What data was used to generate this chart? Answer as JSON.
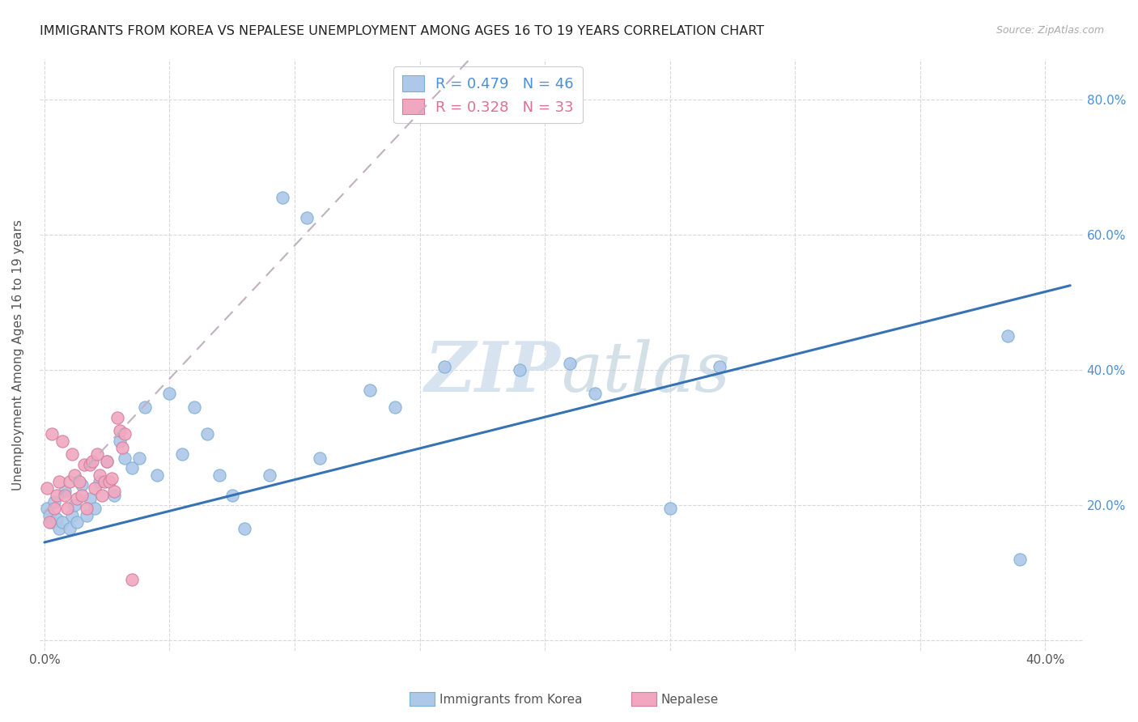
{
  "title": "IMMIGRANTS FROM KOREA VS NEPALESE UNEMPLOYMENT AMONG AGES 16 TO 19 YEARS CORRELATION CHART",
  "source": "Source: ZipAtlas.com",
  "ylabel": "Unemployment Among Ages 16 to 19 years",
  "xlabel_korea": "Immigrants from Korea",
  "xlabel_nepalese": "Nepalese",
  "xmin": -0.002,
  "xmax": 0.415,
  "ymin": -0.015,
  "ymax": 0.86,
  "korea_color": "#adc8e8",
  "korea_edge_color": "#7aaed4",
  "nepalese_color": "#f0a8c0",
  "nepalese_edge_color": "#d47a9a",
  "korea_R": 0.479,
  "korea_N": 46,
  "nepalese_R": 0.328,
  "nepalese_N": 33,
  "korea_line_color": "#3672b4",
  "nepalese_line_color": "#c0b0c0",
  "background_color": "#ffffff",
  "grid_color": "#d8d8d8",
  "korea_line_x0": 0.0,
  "korea_line_y0": 0.145,
  "korea_line_x1": 0.41,
  "korea_line_y1": 0.525,
  "nepalese_line_x0": 0.0,
  "nepalese_line_y0": 0.19,
  "nepalese_line_x1": 0.17,
  "nepalese_line_y1": 0.86,
  "korea_x": [
    0.001,
    0.002,
    0.003,
    0.004,
    0.005,
    0.006,
    0.007,
    0.008,
    0.01,
    0.011,
    0.012,
    0.013,
    0.015,
    0.017,
    0.018,
    0.02,
    0.022,
    0.025,
    0.028,
    0.03,
    0.032,
    0.035,
    0.038,
    0.04,
    0.045,
    0.05,
    0.055,
    0.06,
    0.065,
    0.07,
    0.075,
    0.08,
    0.09,
    0.095,
    0.105,
    0.11,
    0.13,
    0.14,
    0.16,
    0.19,
    0.21,
    0.22,
    0.25,
    0.27,
    0.385,
    0.39
  ],
  "korea_y": [
    0.195,
    0.185,
    0.175,
    0.205,
    0.18,
    0.165,
    0.175,
    0.22,
    0.165,
    0.185,
    0.2,
    0.175,
    0.23,
    0.185,
    0.21,
    0.195,
    0.235,
    0.265,
    0.215,
    0.295,
    0.27,
    0.255,
    0.27,
    0.345,
    0.245,
    0.365,
    0.275,
    0.345,
    0.305,
    0.245,
    0.215,
    0.165,
    0.245,
    0.655,
    0.625,
    0.27,
    0.37,
    0.345,
    0.405,
    0.4,
    0.41,
    0.365,
    0.195,
    0.405,
    0.45,
    0.12
  ],
  "nepalese_x": [
    0.001,
    0.002,
    0.003,
    0.004,
    0.005,
    0.006,
    0.007,
    0.008,
    0.009,
    0.01,
    0.011,
    0.012,
    0.013,
    0.014,
    0.015,
    0.016,
    0.017,
    0.018,
    0.019,
    0.02,
    0.021,
    0.022,
    0.023,
    0.024,
    0.025,
    0.026,
    0.027,
    0.028,
    0.029,
    0.03,
    0.031,
    0.032,
    0.035
  ],
  "nepalese_y": [
    0.225,
    0.175,
    0.305,
    0.195,
    0.215,
    0.235,
    0.295,
    0.215,
    0.195,
    0.235,
    0.275,
    0.245,
    0.21,
    0.235,
    0.215,
    0.26,
    0.195,
    0.26,
    0.265,
    0.225,
    0.275,
    0.245,
    0.215,
    0.235,
    0.265,
    0.235,
    0.24,
    0.22,
    0.33,
    0.31,
    0.285,
    0.305,
    0.09
  ]
}
